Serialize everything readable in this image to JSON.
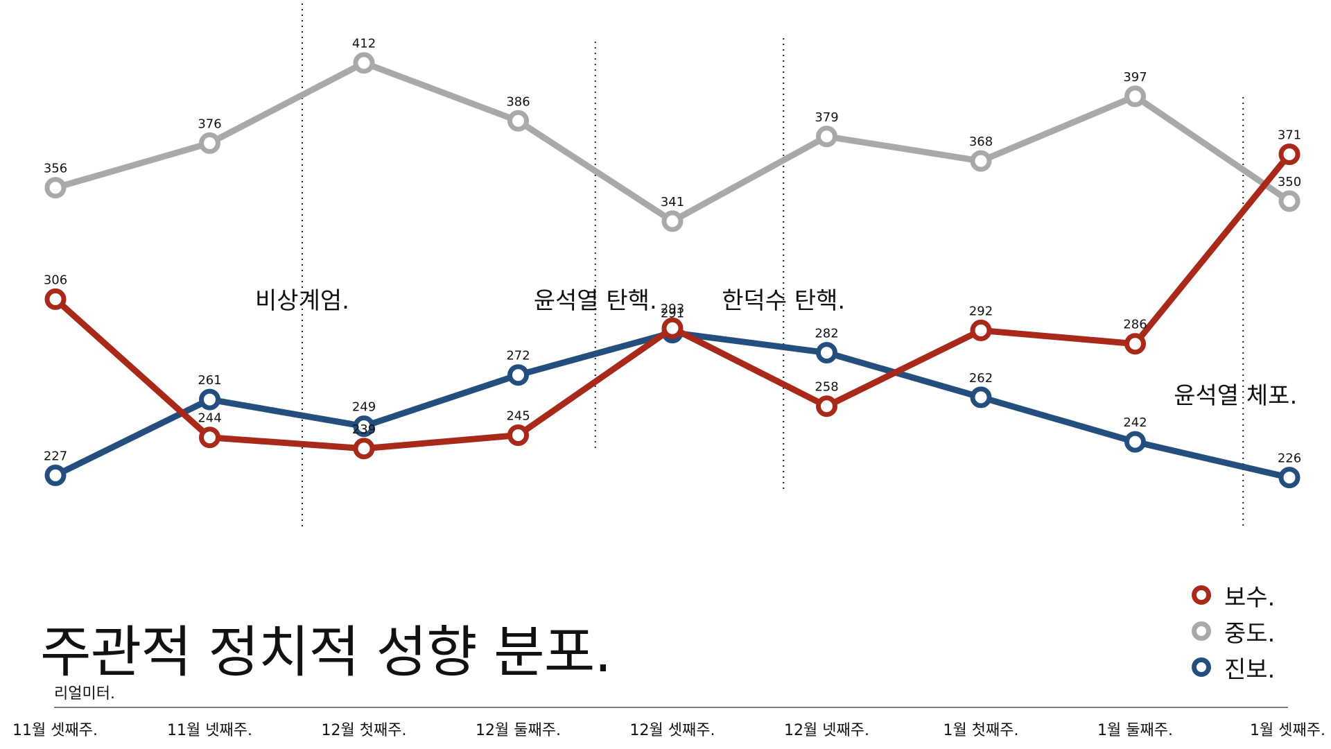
{
  "title": "주관적 정치적 성향 분포.",
  "source": "리얼미터.",
  "colors": {
    "보수": "#a8281a",
    "중도": "#a9a9a9",
    "진보": "#234e7d"
  },
  "legend": [
    {
      "label": "보수.",
      "color": "#a8281a"
    },
    {
      "label": "중도.",
      "color": "#a9a9a9"
    },
    {
      "label": "진보.",
      "color": "#234e7d"
    }
  ],
  "chart_data": {
    "type": "line",
    "categories": [
      "11월 셋째주.",
      "11월 넷째주.",
      "12월 첫째주.",
      "12월 둘째주.",
      "12월 셋째주.",
      "12월 넷째주.",
      "1월 첫째주.",
      "1월 둘째주.",
      "1월 셋째주."
    ],
    "series": [
      {
        "name": "보수.",
        "color": "#a8281a",
        "values": [
          306,
          244,
          239,
          245,
          293,
          258,
          292,
          286,
          371
        ]
      },
      {
        "name": "중도.",
        "color": "#a9a9a9",
        "values": [
          356,
          376,
          412,
          386,
          341,
          379,
          368,
          397,
          350
        ]
      },
      {
        "name": "진보.",
        "color": "#234e7d",
        "values": [
          227,
          261,
          249,
          272,
          291,
          282,
          262,
          242,
          226
        ]
      }
    ],
    "annotations": [
      {
        "label": "비상계엄.",
        "x": 1.6
      },
      {
        "label": "윤석열 탄핵.",
        "x": 3.5
      },
      {
        "label": "한덕수 탄핵.",
        "x": 4.72
      },
      {
        "label": "윤석열 체포.",
        "x": 7.7
      }
    ],
    "ylim": [
      210,
      420
    ],
    "legend_position": "bottom-right",
    "grid": false
  }
}
